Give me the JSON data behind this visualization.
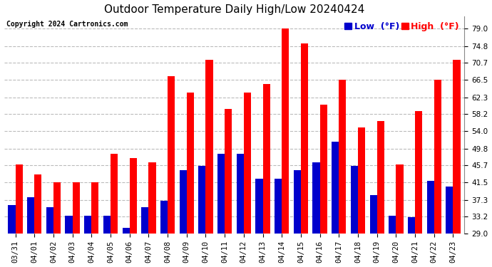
{
  "title": "Outdoor Temperature Daily High/Low 20240424",
  "copyright": "Copyright 2024 Cartronics.com",
  "legend_low_label": "Low  (°F)",
  "legend_high_label": "High  (°F)",
  "dates": [
    "03/31",
    "04/01",
    "04/02",
    "04/03",
    "04/04",
    "04/05",
    "04/06",
    "04/07",
    "04/08",
    "04/09",
    "04/10",
    "04/11",
    "04/12",
    "04/13",
    "04/14",
    "04/15",
    "04/16",
    "04/17",
    "04/18",
    "04/19",
    "04/20",
    "04/21",
    "04/22",
    "04/23"
  ],
  "highs": [
    46.0,
    43.5,
    41.5,
    41.5,
    41.5,
    48.5,
    47.5,
    46.5,
    67.5,
    63.5,
    71.5,
    59.5,
    63.5,
    65.5,
    79.0,
    75.5,
    60.5,
    66.5,
    55.0,
    56.5,
    46.0,
    59.0,
    66.5,
    71.5
  ],
  "lows": [
    36.0,
    38.0,
    35.5,
    33.5,
    33.5,
    33.5,
    30.5,
    35.5,
    37.0,
    44.5,
    45.5,
    48.5,
    48.5,
    42.5,
    42.5,
    44.5,
    46.5,
    51.5,
    45.5,
    38.5,
    33.5,
    33.0,
    42.0,
    40.5
  ],
  "bar_width": 0.38,
  "high_color": "#ff0000",
  "low_color": "#0000cc",
  "background_color": "#ffffff",
  "plot_bg_color": "#ffffff",
  "grid_color": "#bbbbbb",
  "ymin": 29.0,
  "ymax": 82.0,
  "yticks": [
    29.0,
    33.2,
    37.3,
    41.5,
    45.7,
    49.8,
    54.0,
    58.2,
    62.3,
    66.5,
    70.7,
    74.8,
    79.0
  ],
  "title_fontsize": 11,
  "copyright_fontsize": 7,
  "legend_fontsize": 9,
  "tick_fontsize": 7.5
}
